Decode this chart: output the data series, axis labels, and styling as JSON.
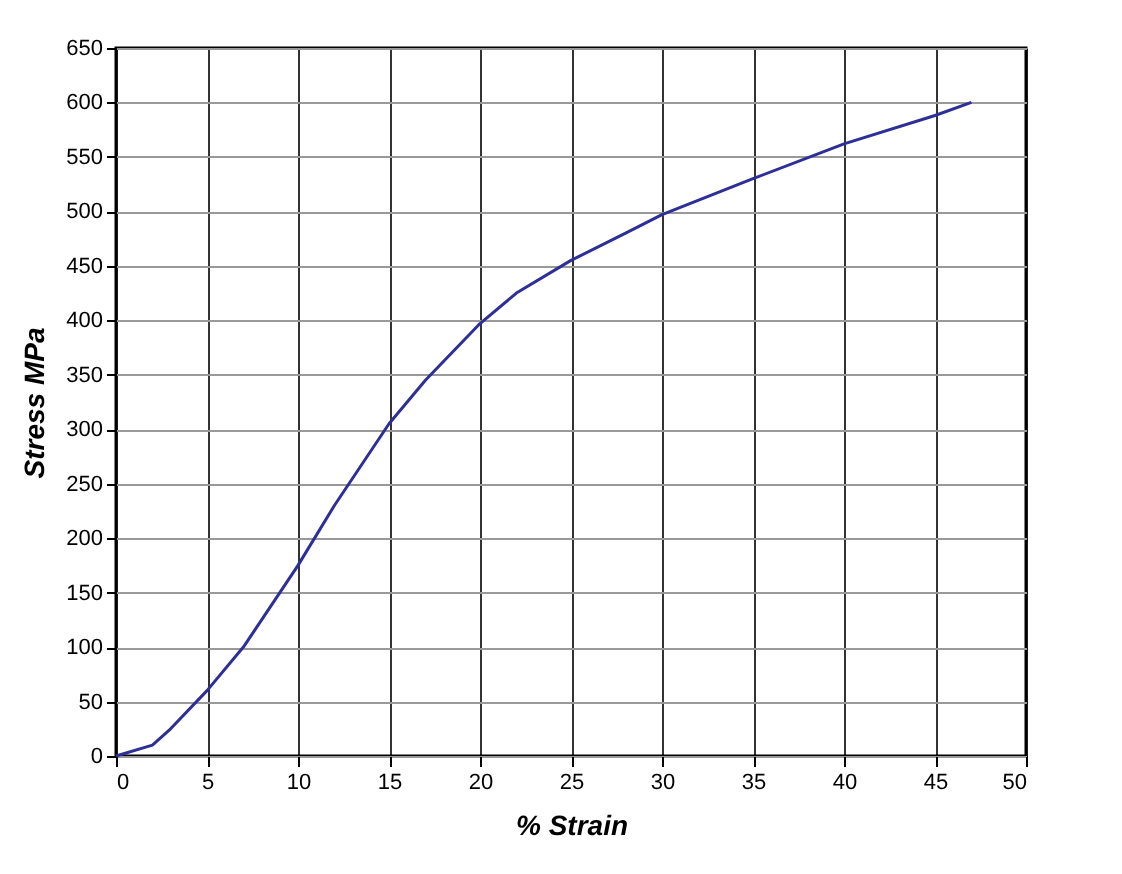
{
  "chart_data": {
    "type": "line",
    "xlabel": "% Strain",
    "ylabel": "Stress MPa",
    "x": [
      0,
      2,
      3,
      5,
      7,
      10,
      12,
      15,
      17,
      20,
      22,
      25,
      28,
      30,
      35,
      40,
      45,
      47
    ],
    "series": [
      {
        "color": "#2e2e99",
        "values": [
          0,
          10,
          25,
          60,
          100,
          175,
          230,
          305,
          345,
          397,
          425,
          455,
          480,
          497,
          530,
          562,
          588,
          600
        ]
      }
    ],
    "xlim": [
      0,
      50
    ],
    "xticks": [
      0,
      5,
      10,
      15,
      20,
      25,
      30,
      35,
      40,
      45,
      50
    ],
    "ylim": [
      0,
      650
    ],
    "yticks": [
      0,
      50,
      100,
      150,
      200,
      250,
      300,
      350,
      400,
      450,
      500,
      550,
      600,
      650
    ],
    "grid": true,
    "marker": "none",
    "line_style": "solid"
  }
}
